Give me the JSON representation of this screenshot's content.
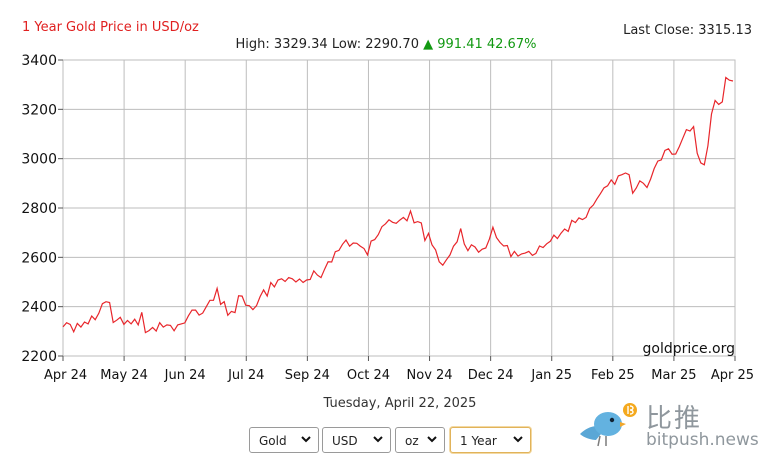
{
  "header": {
    "title": "1 Year Gold Price in USD/oz",
    "last_close": "Last Close: 3315.13",
    "stats_left": "High: 3329.34 Low: 2290.70",
    "stats_arrow": "▲",
    "stats_change": "991.41 42.67%"
  },
  "date_label": "Tuesday, April 22, 2025",
  "controls": {
    "metal": "Gold",
    "currency": "USD",
    "unit": "oz",
    "range": "1 Year"
  },
  "watermark": {
    "cn": "比推",
    "en": "bitpush.news",
    "chart_credit": "goldprice.org"
  },
  "colors": {
    "line": "#e8262b",
    "title": "#e02020",
    "up": "#129912",
    "grid": "#bdbdbd"
  },
  "chart_data": {
    "type": "line",
    "title": "1 Year Gold Price in USD/oz",
    "xlabel": "",
    "ylabel": "",
    "x_ticks": [
      "Apr 24",
      "May 24",
      "Jun 24",
      "Jul 24",
      "Sep 24",
      "Oct 24",
      "Nov 24",
      "Dec 24",
      "Jan 25",
      "Feb 25",
      "Mar 25",
      "Apr 25"
    ],
    "y_ticks": [
      2200,
      2400,
      2600,
      2800,
      3000,
      3200,
      3400
    ],
    "ylim": [
      2200,
      3400
    ],
    "grid": true,
    "series": [
      {
        "values": [
          2318,
          2335,
          2328,
          2298,
          2332,
          2317,
          2338,
          2330,
          2362,
          2347,
          2373,
          2412,
          2420,
          2417,
          2336,
          2345,
          2357,
          2328,
          2344,
          2330,
          2349,
          2326,
          2377,
          2295,
          2303,
          2316,
          2301,
          2335,
          2317,
          2326,
          2324,
          2302,
          2326,
          2330,
          2334,
          2363,
          2386,
          2386,
          2366,
          2374,
          2400,
          2426,
          2426,
          2474,
          2409,
          2420,
          2365,
          2381,
          2376,
          2444,
          2443,
          2406,
          2404,
          2388,
          2404,
          2441,
          2468,
          2443,
          2498,
          2480,
          2508,
          2513,
          2502,
          2518,
          2513,
          2500,
          2512,
          2498,
          2508,
          2510,
          2545,
          2528,
          2518,
          2552,
          2582,
          2581,
          2623,
          2628,
          2653,
          2670,
          2645,
          2658,
          2657,
          2645,
          2636,
          2610,
          2666,
          2672,
          2692,
          2724,
          2736,
          2752,
          2742,
          2738,
          2751,
          2762,
          2748,
          2788,
          2740,
          2745,
          2739,
          2668,
          2697,
          2651,
          2630,
          2582,
          2568,
          2590,
          2610,
          2645,
          2663,
          2717,
          2654,
          2627,
          2651,
          2642,
          2621,
          2633,
          2638,
          2674,
          2722,
          2680,
          2660,
          2646,
          2648,
          2603,
          2624,
          2605,
          2614,
          2617,
          2624,
          2608,
          2616,
          2646,
          2640,
          2655,
          2665,
          2690,
          2676,
          2698,
          2715,
          2705,
          2750,
          2741,
          2760,
          2753,
          2762,
          2798,
          2812,
          2837,
          2858,
          2882,
          2890,
          2914,
          2896,
          2930,
          2935,
          2942,
          2935,
          2860,
          2881,
          2910,
          2900,
          2883,
          2917,
          2960,
          2990,
          2995,
          3033,
          3040,
          3018,
          3019,
          3049,
          3083,
          3118,
          3112,
          3130,
          3022,
          2983,
          2975,
          3052,
          3181,
          3236,
          3220,
          3230,
          3329,
          3318,
          3315
        ]
      }
    ]
  }
}
